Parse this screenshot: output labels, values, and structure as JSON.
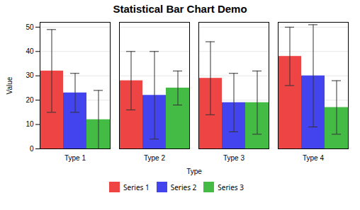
{
  "chart_data": {
    "type": "bar",
    "title": "Statistical Bar Chart Demo",
    "xlabel": "Type",
    "ylabel": "Value",
    "categories": [
      "Type 1",
      "Type 2",
      "Type 3",
      "Type 4"
    ],
    "series": [
      {
        "name": "Series 1",
        "color": "#ee4444",
        "values": [
          32,
          28,
          29,
          38
        ],
        "errors": [
          17,
          12,
          15,
          12
        ]
      },
      {
        "name": "Series 2",
        "color": "#4444ee",
        "values": [
          23,
          22,
          19,
          30
        ],
        "errors": [
          8,
          18,
          12,
          21
        ]
      },
      {
        "name": "Series 3",
        "color": "#44bb44",
        "values": [
          12,
          25,
          19,
          17
        ],
        "errors": [
          12,
          7,
          13,
          11
        ]
      }
    ],
    "ylim": [
      0,
      52
    ],
    "yticks": [
      0,
      10,
      20,
      30,
      40,
      50
    ],
    "grid": true,
    "legend": "bottom"
  }
}
